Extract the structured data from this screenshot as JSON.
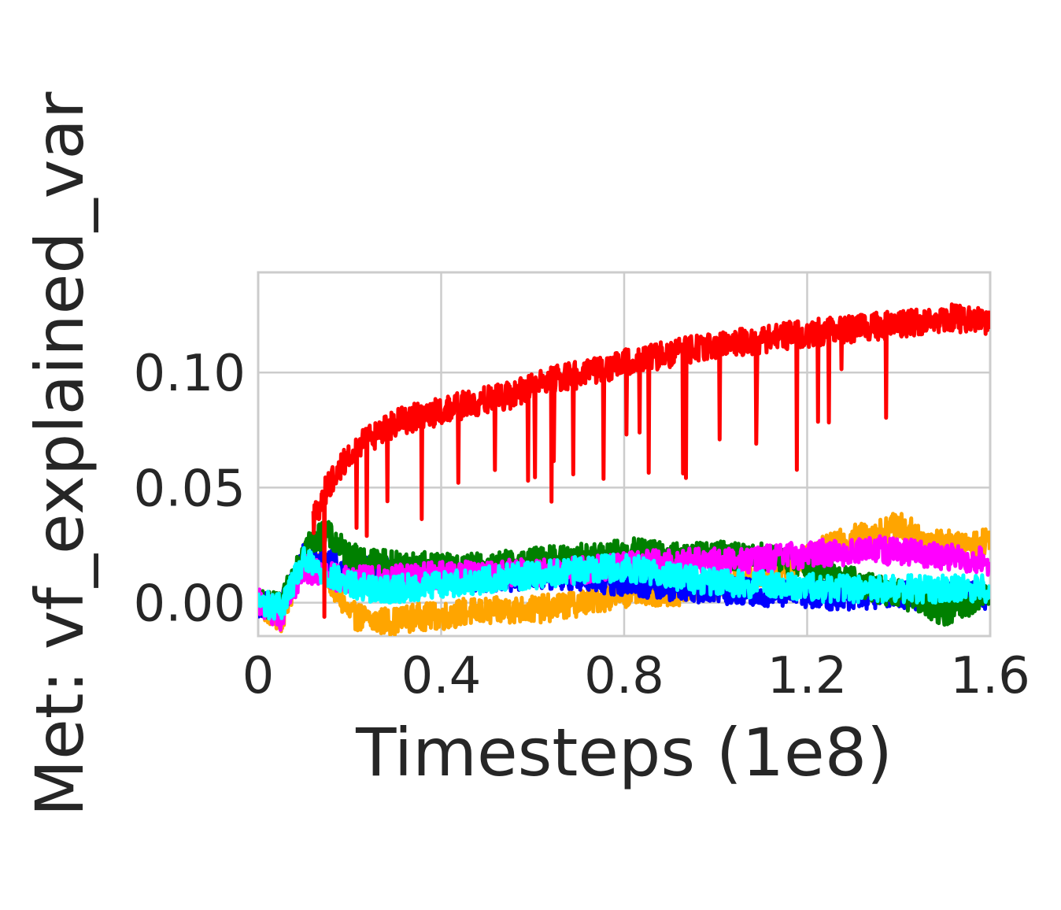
{
  "chart_data": {
    "type": "line",
    "title": "",
    "xlabel": "Timesteps (1e8)",
    "ylabel": "Met: vf_explained_var",
    "xlim": [
      0,
      1.6
    ],
    "ylim": [
      -0.0145,
      0.1435
    ],
    "xticks": [
      0,
      0.4,
      0.8,
      1.2,
      1.6
    ],
    "xtick_labels": [
      "0",
      "0.4",
      "0.8",
      "1.2",
      "1.6"
    ],
    "yticks": [
      0.0,
      0.05,
      0.1
    ],
    "ytick_labels": [
      "0.00",
      "0.05",
      "0.10"
    ],
    "grid": true,
    "legend": "none",
    "noise_note_free": true,
    "series": [
      {
        "color": "#ffa500",
        "x": [
          0,
          0.05,
          0.1,
          0.15,
          0.2,
          0.25,
          0.3,
          0.35,
          0.4,
          0.45,
          0.5,
          0.55,
          0.6,
          0.65,
          0.7,
          0.75,
          0.8,
          0.85,
          0.9,
          0.95,
          1.0,
          1.05,
          1.1,
          1.15,
          1.2,
          1.25,
          1.3,
          1.35,
          1.4,
          1.45,
          1.5,
          1.55,
          1.6
        ],
        "y": [
          0.0,
          -0.008,
          0.02,
          0.012,
          -0.005,
          -0.008,
          -0.008,
          -0.006,
          -0.006,
          -0.004,
          -0.004,
          -0.003,
          -0.003,
          -0.002,
          0.0,
          0.002,
          0.004,
          0.005,
          0.004,
          0.006,
          0.007,
          0.01,
          0.012,
          0.016,
          0.02,
          0.024,
          0.028,
          0.03,
          0.034,
          0.028,
          0.026,
          0.024,
          0.028
        ]
      },
      {
        "color": "#0000ff",
        "x": [
          0,
          0.05,
          0.1,
          0.15,
          0.2,
          0.25,
          0.3,
          0.35,
          0.4,
          0.45,
          0.5,
          0.55,
          0.6,
          0.65,
          0.7,
          0.75,
          0.8,
          0.85,
          0.9,
          0.95,
          1.0,
          1.05,
          1.1,
          1.15,
          1.2,
          1.25,
          1.3,
          1.35,
          1.4,
          1.45,
          1.5,
          1.55,
          1.6
        ],
        "y": [
          0.0,
          -0.002,
          0.02,
          0.017,
          0.015,
          0.014,
          0.013,
          0.012,
          0.012,
          0.011,
          0.011,
          0.011,
          0.012,
          0.012,
          0.011,
          0.01,
          0.009,
          0.008,
          0.007,
          0.006,
          0.005,
          0.005,
          0.004,
          0.004,
          0.004,
          0.003,
          0.003,
          0.003,
          0.003,
          0.003,
          0.003,
          0.003,
          0.003
        ]
      },
      {
        "color": "#008000",
        "x": [
          0,
          0.05,
          0.1,
          0.15,
          0.2,
          0.25,
          0.3,
          0.35,
          0.4,
          0.45,
          0.5,
          0.55,
          0.6,
          0.65,
          0.7,
          0.75,
          0.8,
          0.85,
          0.9,
          0.95,
          1.0,
          1.05,
          1.1,
          1.15,
          1.2,
          1.25,
          1.3,
          1.35,
          1.4,
          1.45,
          1.5,
          1.55,
          1.6
        ],
        "y": [
          0.0,
          -0.002,
          0.025,
          0.03,
          0.02,
          0.018,
          0.017,
          0.016,
          0.016,
          0.015,
          0.016,
          0.017,
          0.018,
          0.019,
          0.02,
          0.02,
          0.022,
          0.022,
          0.02,
          0.02,
          0.021,
          0.02,
          0.02,
          0.019,
          0.016,
          0.013,
          0.01,
          0.006,
          0.004,
          0.0,
          -0.004,
          0.0,
          0.002
        ]
      },
      {
        "color": "#ff00ff",
        "x": [
          0,
          0.05,
          0.1,
          0.15,
          0.2,
          0.25,
          0.3,
          0.35,
          0.4,
          0.45,
          0.5,
          0.55,
          0.6,
          0.65,
          0.7,
          0.75,
          0.8,
          0.85,
          0.9,
          0.95,
          1.0,
          1.05,
          1.1,
          1.15,
          1.2,
          1.25,
          1.3,
          1.35,
          1.4,
          1.45,
          1.5,
          1.55,
          1.6
        ],
        "y": [
          0.0,
          -0.006,
          0.015,
          0.012,
          0.01,
          0.01,
          0.011,
          0.011,
          0.012,
          0.012,
          0.012,
          0.013,
          0.013,
          0.014,
          0.014,
          0.015,
          0.016,
          0.017,
          0.017,
          0.018,
          0.018,
          0.018,
          0.019,
          0.02,
          0.021,
          0.022,
          0.022,
          0.023,
          0.022,
          0.021,
          0.02,
          0.019,
          0.018
        ]
      },
      {
        "color": "#00ffff",
        "x": [
          0,
          0.05,
          0.1,
          0.15,
          0.2,
          0.25,
          0.3,
          0.35,
          0.4,
          0.45,
          0.5,
          0.55,
          0.6,
          0.65,
          0.7,
          0.75,
          0.8,
          0.85,
          0.9,
          0.95,
          1.0,
          1.05,
          1.1,
          1.15,
          1.2,
          1.25,
          1.3,
          1.35,
          1.4,
          1.45,
          1.5,
          1.55,
          1.6
        ],
        "y": [
          0.0,
          -0.002,
          0.018,
          0.012,
          0.008,
          0.006,
          0.006,
          0.007,
          0.008,
          0.009,
          0.01,
          0.011,
          0.012,
          0.013,
          0.014,
          0.015,
          0.015,
          0.014,
          0.012,
          0.01,
          0.009,
          0.008,
          0.008,
          0.007,
          0.007,
          0.006,
          0.006,
          0.006,
          0.006,
          0.006,
          0.006,
          0.006,
          0.006
        ]
      },
      {
        "color": "#ff0000",
        "x": [
          0,
          0.05,
          0.1,
          0.12,
          0.15,
          0.2,
          0.25,
          0.3,
          0.35,
          0.4,
          0.45,
          0.5,
          0.55,
          0.6,
          0.65,
          0.7,
          0.75,
          0.8,
          0.85,
          0.9,
          0.95,
          1.0,
          1.05,
          1.1,
          1.15,
          1.2,
          1.25,
          1.3,
          1.35,
          1.4,
          1.45,
          1.5,
          1.55,
          1.6
        ],
        "y": [
          null,
          null,
          null,
          0.035,
          0.05,
          0.065,
          0.072,
          0.078,
          0.081,
          0.083,
          0.086,
          0.088,
          0.09,
          0.094,
          0.097,
          0.099,
          0.101,
          0.104,
          0.106,
          0.108,
          0.11,
          0.112,
          0.113,
          0.114,
          0.116,
          0.117,
          0.118,
          0.119,
          0.12,
          0.121,
          0.122,
          0.124,
          0.123,
          0.121
        ]
      }
    ]
  }
}
